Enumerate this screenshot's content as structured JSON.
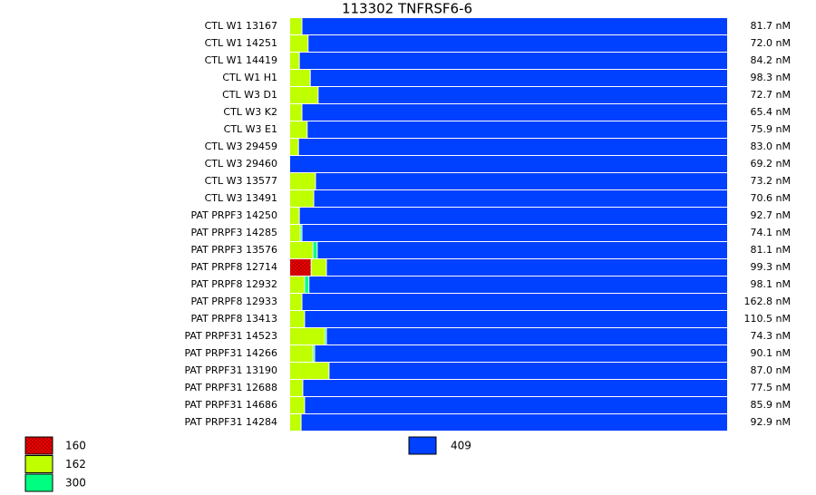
{
  "chart_data": {
    "type": "stacked-bar",
    "title": "113302  TNFRSF6-6",
    "categories": [
      "CTL W1 13167",
      "CTL W1 14251",
      "CTL W1 14419",
      "CTL W1 H1",
      "CTL W3 D1",
      "CTL W3 K2",
      "CTL W3 E1",
      "CTL W3 29459",
      "CTL W3 29460",
      "CTL W3 13577",
      "CTL W3 13491",
      "PAT PRPF3 14250",
      "PAT PRPF3 14285",
      "PAT PRPF3 13576",
      "PAT PRPF8 12714",
      "PAT PRPF8 12932",
      "PAT PRPF8 12933",
      "PAT PRPF8 13413",
      "PAT PRPF31 14523",
      "PAT PRPF31 14266",
      "PAT PRPF31 13190",
      "PAT PRPF31 12688",
      "PAT PRPF31 14686",
      "PAT PRPF31 14284"
    ],
    "annotations": [
      "81.7 nM",
      "72.0 nM",
      "84.2 nM",
      "98.3 nM",
      "72.7 nM",
      "65.4 nM",
      "75.9 nM",
      "83.0 nM",
      "69.2 nM",
      "73.2 nM",
      "70.6 nM",
      "92.7 nM",
      "74.1 nM",
      "81.1 nM",
      "99.3 nM",
      "98.1 nM",
      "162.8 nM",
      "110.5 nM",
      "74.3 nM",
      "90.1 nM",
      "87.0 nM",
      "77.5 nM",
      "85.9 nM",
      "92.9 nM"
    ],
    "series": [
      {
        "name": "160",
        "color": "#ff0000",
        "pattern": "crosshatch",
        "values": [
          0,
          0,
          0,
          0,
          0,
          0,
          0,
          0,
          0,
          0,
          0,
          0,
          0,
          0,
          4.8,
          0,
          0,
          0,
          0,
          0,
          0,
          0,
          0,
          0
        ]
      },
      {
        "name": "162",
        "color": "#bfff00",
        "values": [
          2.7,
          4.1,
          2.1,
          4.6,
          6.4,
          2.7,
          3.9,
          1.9,
          0,
          5.8,
          5.4,
          2.1,
          2.3,
          5.2,
          3.5,
          3.3,
          2.7,
          3.3,
          7.9,
          5.2,
          8.9,
          2.9,
          3.3,
          2.5
        ]
      },
      {
        "name": "300",
        "color": "#00ff80",
        "values": [
          0,
          0,
          0,
          0,
          0,
          0,
          0,
          0,
          0,
          0,
          0,
          0,
          0.4,
          1.0,
          0,
          1.0,
          0,
          0,
          0.4,
          0.4,
          0,
          0,
          0,
          0
        ]
      },
      {
        "name": "409",
        "color": "#0040ff",
        "values": [
          97.3,
          95.9,
          97.9,
          95.4,
          93.6,
          97.3,
          96.1,
          98.1,
          100,
          94.2,
          94.6,
          97.9,
          97.3,
          93.8,
          91.7,
          95.7,
          97.3,
          96.7,
          91.7,
          94.4,
          91.1,
          97.1,
          96.7,
          97.5
        ]
      }
    ]
  }
}
